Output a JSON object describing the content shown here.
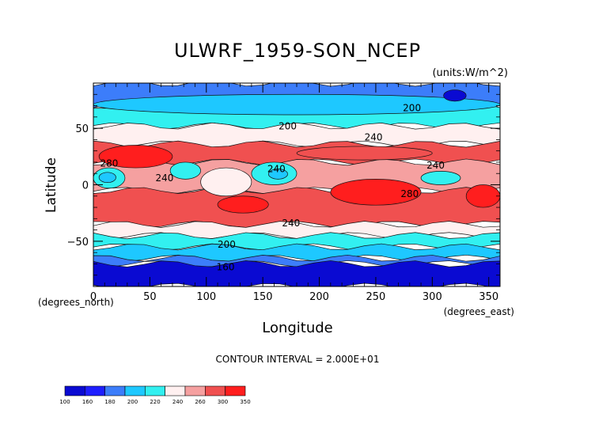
{
  "chart_data": {
    "type": "heatmap",
    "title": "ULWRF_1959-SON_NCEP",
    "units_label": "(units:W/m^2)",
    "xlabel": "Longitude",
    "ylabel": "Latitude",
    "x_unit_label": "(degrees_east)",
    "y_unit_label": "(degrees_north)",
    "xlim": [
      0,
      360
    ],
    "ylim": [
      -90,
      90
    ],
    "x_ticks": [
      "0",
      "50",
      "100",
      "150",
      "200",
      "250",
      "300",
      "350"
    ],
    "y_ticks": [
      "50",
      "0",
      "−50"
    ],
    "contour_interval_text": "CONTOUR INTERVAL = 2.000E+01",
    "contour_labels": [
      {
        "text": "200",
        "x": 172,
        "y": 52
      },
      {
        "text": "200",
        "x": 282,
        "y": 68
      },
      {
        "text": "240",
        "x": 248,
        "y": 42
      },
      {
        "text": "280",
        "x": 14,
        "y": 19
      },
      {
        "text": "240",
        "x": 63,
        "y": 6
      },
      {
        "text": "240",
        "x": 162,
        "y": 14
      },
      {
        "text": "240",
        "x": 303,
        "y": 17
      },
      {
        "text": "280",
        "x": 280,
        "y": -8
      },
      {
        "text": "240",
        "x": 175,
        "y": -34
      },
      {
        "text": "200",
        "x": 118,
        "y": -53
      },
      {
        "text": "160",
        "x": 117,
        "y": -73
      }
    ],
    "colorbar": {
      "levels": [
        "100",
        "160",
        "180",
        "200",
        "220",
        "240",
        "260",
        "300",
        "350"
      ],
      "colors": [
        "#0a0ad2",
        "#1e1eff",
        "#3c7dfa",
        "#1ec8ff",
        "#32f0f0",
        "#fff0f0",
        "#f5a0a0",
        "#f05050",
        "#ff1e1e"
      ]
    },
    "bands": [
      {
        "name": "north-polar",
        "lat_max": 90,
        "lat_min": 70,
        "color": "#3c7dfa"
      },
      {
        "name": "north-mid",
        "lat_max": 70,
        "lat_min": 52,
        "color": "#32f0f0"
      },
      {
        "name": "north-subtropics",
        "lat_max": 52,
        "lat_min": 36,
        "color": "#fff0f0"
      },
      {
        "name": "north-warm",
        "lat_max": 36,
        "lat_min": 20,
        "color": "#f05050"
      },
      {
        "name": "tropics",
        "lat_max": 20,
        "lat_min": -5,
        "color": "#f5a0a0"
      },
      {
        "name": "south-warm",
        "lat_max": -5,
        "lat_min": -35,
        "color": "#f05050"
      },
      {
        "name": "south-subtropics",
        "lat_max": -35,
        "lat_min": -45,
        "color": "#fff0f0"
      },
      {
        "name": "south-mid",
        "lat_max": -45,
        "lat_min": -55,
        "color": "#32f0f0"
      },
      {
        "name": "south-cold",
        "lat_max": -55,
        "lat_min": -65,
        "color": "#1ec8ff"
      },
      {
        "name": "south-colder",
        "lat_max": -65,
        "lat_min": -70,
        "color": "#3c7dfa"
      },
      {
        "name": "antarctic",
        "lat_max": -70,
        "lat_min": -90,
        "color": "#0a0ad2"
      }
    ],
    "blobs": [
      {
        "name": "n-atlantic-blue",
        "lon": [
          0,
          360
        ],
        "lat": [
          62,
          80
        ],
        "color": "#1ec8ff"
      },
      {
        "name": "arctic-dark",
        "lon": [
          310,
          330
        ],
        "lat": [
          74,
          84
        ],
        "color": "#0a0ad2"
      },
      {
        "name": "africa-hot",
        "lon": [
          5,
          70
        ],
        "lat": [
          15,
          35
        ],
        "color": "#ff1e1e"
      },
      {
        "name": "africa-cold",
        "lon": [
          0,
          28
        ],
        "lat": [
          -3,
          15
        ],
        "color": "#32f0f0"
      },
      {
        "name": "africa-core",
        "lon": [
          5,
          20
        ],
        "lat": [
          2,
          11
        ],
        "color": "#1ec8ff"
      },
      {
        "name": "india-cold",
        "lon": [
          68,
          95
        ],
        "lat": [
          5,
          20
        ],
        "color": "#32f0f0"
      },
      {
        "name": "maritime-cold",
        "lon": [
          95,
          140
        ],
        "lat": [
          -10,
          15
        ],
        "color": "#fff0f0"
      },
      {
        "name": "pac-warm-n",
        "lon": [
          180,
          300
        ],
        "lat": [
          22,
          34
        ],
        "color": "#f05050"
      },
      {
        "name": "warm-pool",
        "lon": [
          140,
          180
        ],
        "lat": [
          0,
          20
        ],
        "color": "#32f0f0"
      },
      {
        "name": "warm-pool-core",
        "lon": [
          155,
          172
        ],
        "lat": [
          5,
          14
        ],
        "color": "#1ec8ff"
      },
      {
        "name": "south-pac-hot",
        "lon": [
          210,
          290
        ],
        "lat": [
          -18,
          5
        ],
        "color": "#ff1e1e"
      },
      {
        "name": "atl-cold",
        "lon": [
          290,
          325
        ],
        "lat": [
          0,
          12
        ],
        "color": "#32f0f0"
      },
      {
        "name": "s-africa-hot",
        "lon": [
          110,
          155
        ],
        "lat": [
          -25,
          -10
        ],
        "color": "#ff1e1e"
      },
      {
        "name": "s-atl-hot",
        "lon": [
          330,
          360
        ],
        "lat": [
          -20,
          0
        ],
        "color": "#ff1e1e"
      }
    ]
  }
}
